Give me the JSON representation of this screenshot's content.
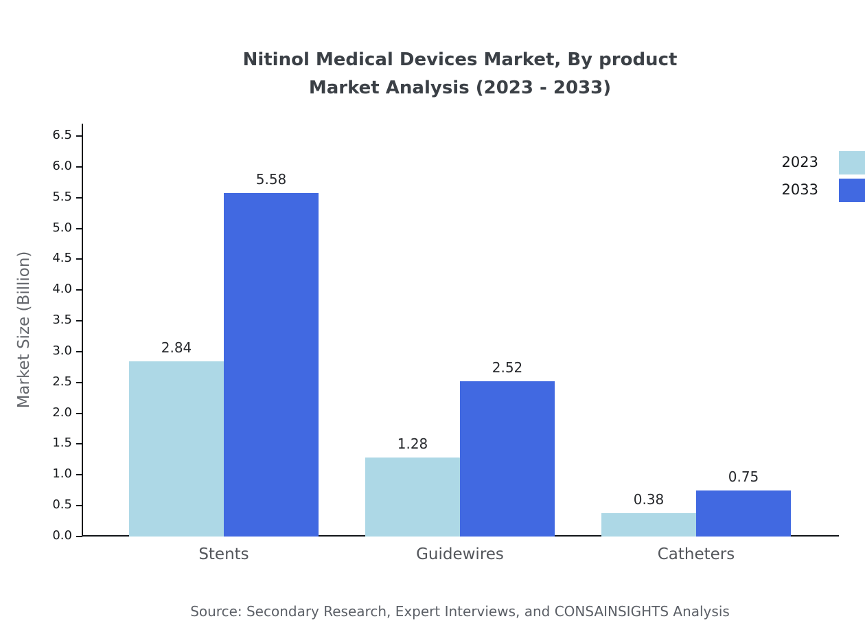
{
  "page": {
    "background": "#ffffff"
  },
  "title": "Nitinol Medical Devices Market, By product\nMarket Analysis (2023 - 2033)",
  "source_note": "Source: Secondary Research, Expert Interviews, and CONSAINSIGHTS Analysis",
  "chart_data": {
    "type": "bar",
    "title": "Nitinol Medical Devices Market, By product\nMarket Analysis (2023 - 2033)",
    "categories": [
      "Stents",
      "Guidewires",
      "Catheters"
    ],
    "series": [
      {
        "name": "2023",
        "color": "#ADD8E6",
        "values": [
          2.84,
          1.28,
          0.38
        ]
      },
      {
        "name": "2033",
        "color": "#4169E1",
        "values": [
          5.58,
          2.52,
          0.75
        ]
      }
    ],
    "xlabel": "",
    "ylabel": "Market Size (Billion)",
    "ylim": [
      0,
      6.5
    ],
    "ytick_step": 0.5,
    "ytick_decimals": 1,
    "value_label_decimals": 2,
    "grid": false,
    "legend_position": "top-right"
  }
}
